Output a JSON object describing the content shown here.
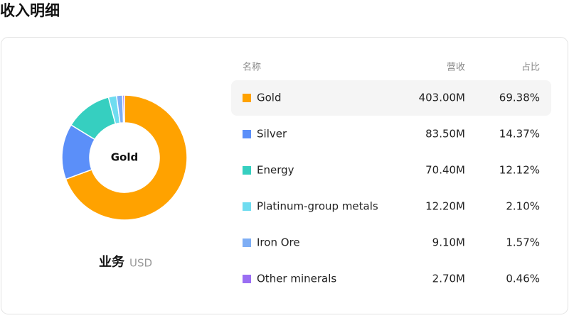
{
  "page_title": "收入明细",
  "chart_data": {
    "type": "donut",
    "center_label": "Gold",
    "caption": "业务",
    "unit": "USD",
    "columns": [
      "名称",
      "营收",
      "占比"
    ],
    "categories": [
      "Gold",
      "Silver",
      "Energy",
      "Platinum-group metals",
      "Iron Ore",
      "Other minerals"
    ],
    "colors": [
      "#ffa200",
      "#5b8ff9",
      "#36cfc0",
      "#6fdcf0",
      "#7eaef5",
      "#9a6ef3"
    ],
    "revenue_labels": [
      "403.00M",
      "83.50M",
      "70.40M",
      "12.20M",
      "9.10M",
      "2.70M"
    ],
    "values": [
      69.38,
      14.37,
      12.12,
      2.1,
      1.57,
      0.46
    ],
    "value_labels": [
      "69.38%",
      "14.37%",
      "12.12%",
      "2.10%",
      "1.57%",
      "0.46%"
    ]
  }
}
